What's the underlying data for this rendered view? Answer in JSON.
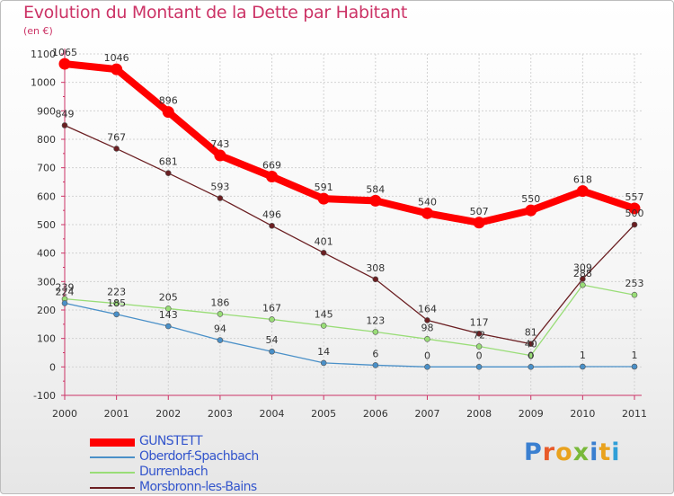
{
  "page": {
    "title": "Evolution du Montant de la Dette par Habitant",
    "subtitle": "(en €)",
    "logo": {
      "text": "Proxiti",
      "letter_colors": [
        "#3a7fd0",
        "#e85a2a",
        "#e9a21e",
        "#79b93a",
        "#3a7fd0",
        "#e9a21e",
        "#2f9fd8"
      ]
    }
  },
  "chart_data": {
    "type": "line",
    "x": [
      "2000",
      "2001",
      "2002",
      "2003",
      "2004",
      "2005",
      "2006",
      "2007",
      "2008",
      "2009",
      "2010",
      "2011"
    ],
    "ylim": [
      -100,
      1100
    ],
    "yticks": [
      "-100",
      "0",
      "100",
      "200",
      "300",
      "400",
      "500",
      "600",
      "700",
      "800",
      "900",
      "1000",
      "1100"
    ],
    "grid": "horizontal",
    "legend": "bottom-left",
    "series": [
      {
        "name": "GUNSTETT",
        "color": "#ff0000",
        "values": [
          1065,
          1046,
          896,
          743,
          669,
          591,
          584,
          540,
          507,
          550,
          618,
          557
        ],
        "labels": [
          "1065",
          "1046",
          "896",
          "743",
          "669",
          "591",
          "584",
          "540",
          "507",
          "550",
          "618",
          "557"
        ]
      },
      {
        "name": "Oberdorf-Spachbach",
        "color": "#4a90c8",
        "values": [
          224,
          185,
          143,
          94,
          54,
          14,
          6,
          0,
          0,
          0,
          1,
          1
        ],
        "labels": [
          "224",
          "185",
          "143",
          "94",
          "54",
          "14",
          "6",
          "0",
          "0",
          "0",
          "1",
          "1"
        ]
      },
      {
        "name": "Durrenbach",
        "color": "#99dd77",
        "values": [
          239,
          223,
          205,
          186,
          167,
          145,
          123,
          98,
          72,
          40,
          288,
          253
        ],
        "labels": [
          "239",
          "223",
          "205",
          "186",
          "167",
          "145",
          "123",
          "98",
          "72",
          "40",
          "288",
          "253"
        ]
      },
      {
        "name": "Morsbronn-les-Bains",
        "color": "#6b1f22",
        "values": [
          849,
          767,
          681,
          593,
          496,
          401,
          308,
          164,
          117,
          81,
          309,
          500
        ],
        "labels": [
          "849",
          "767",
          "681",
          "593",
          "496",
          "401",
          "308",
          "164",
          "117",
          "81",
          "309",
          "500"
        ]
      }
    ]
  }
}
